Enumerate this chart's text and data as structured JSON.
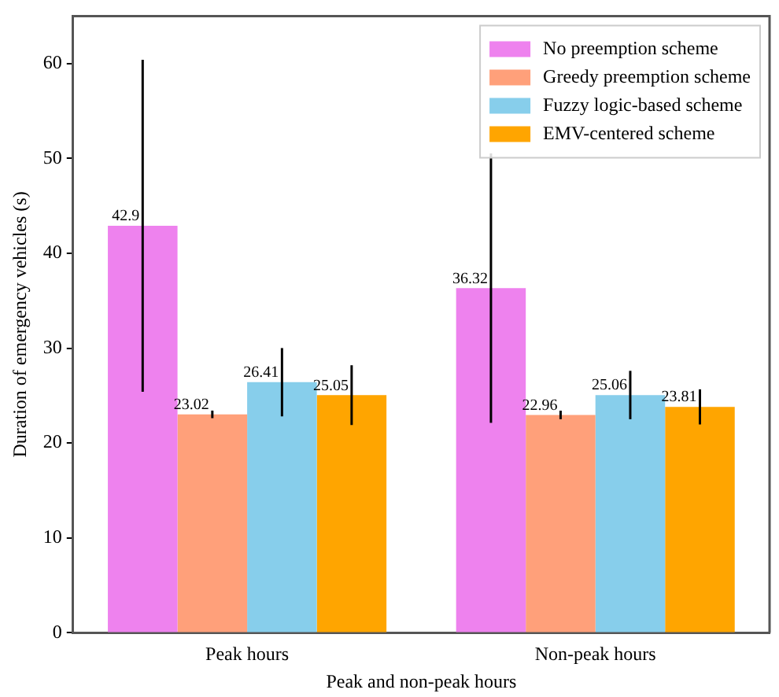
{
  "chart_data": {
    "type": "bar",
    "xlabel": "Peak and non-peak hours",
    "ylabel": "Duration of emergency vehicles (s)",
    "categories": [
      "Peak hours",
      "Non-peak hours"
    ],
    "series": [
      {
        "name": "No preemption scheme",
        "color": "#ee82ee",
        "values": [
          42.9,
          36.32
        ],
        "errors": [
          17.5,
          14.2
        ]
      },
      {
        "name": "Greedy preemption scheme",
        "color": "#ffa07a",
        "values": [
          23.02,
          22.96
        ],
        "errors": [
          0.4,
          0.45
        ]
      },
      {
        "name": "Fuzzy logic-based scheme",
        "color": "#87ceeb",
        "values": [
          26.41,
          25.06
        ],
        "errors": [
          3.6,
          2.55
        ]
      },
      {
        "name": "EMV-centered scheme",
        "color": "#ffa500",
        "values": [
          25.05,
          23.81
        ],
        "errors": [
          3.15,
          1.85
        ]
      }
    ],
    "ylim": [
      0,
      65
    ],
    "yticks": [
      0,
      10,
      20,
      30,
      40,
      50,
      60
    ],
    "grid": false,
    "legend": "top right",
    "data_labels": true
  }
}
